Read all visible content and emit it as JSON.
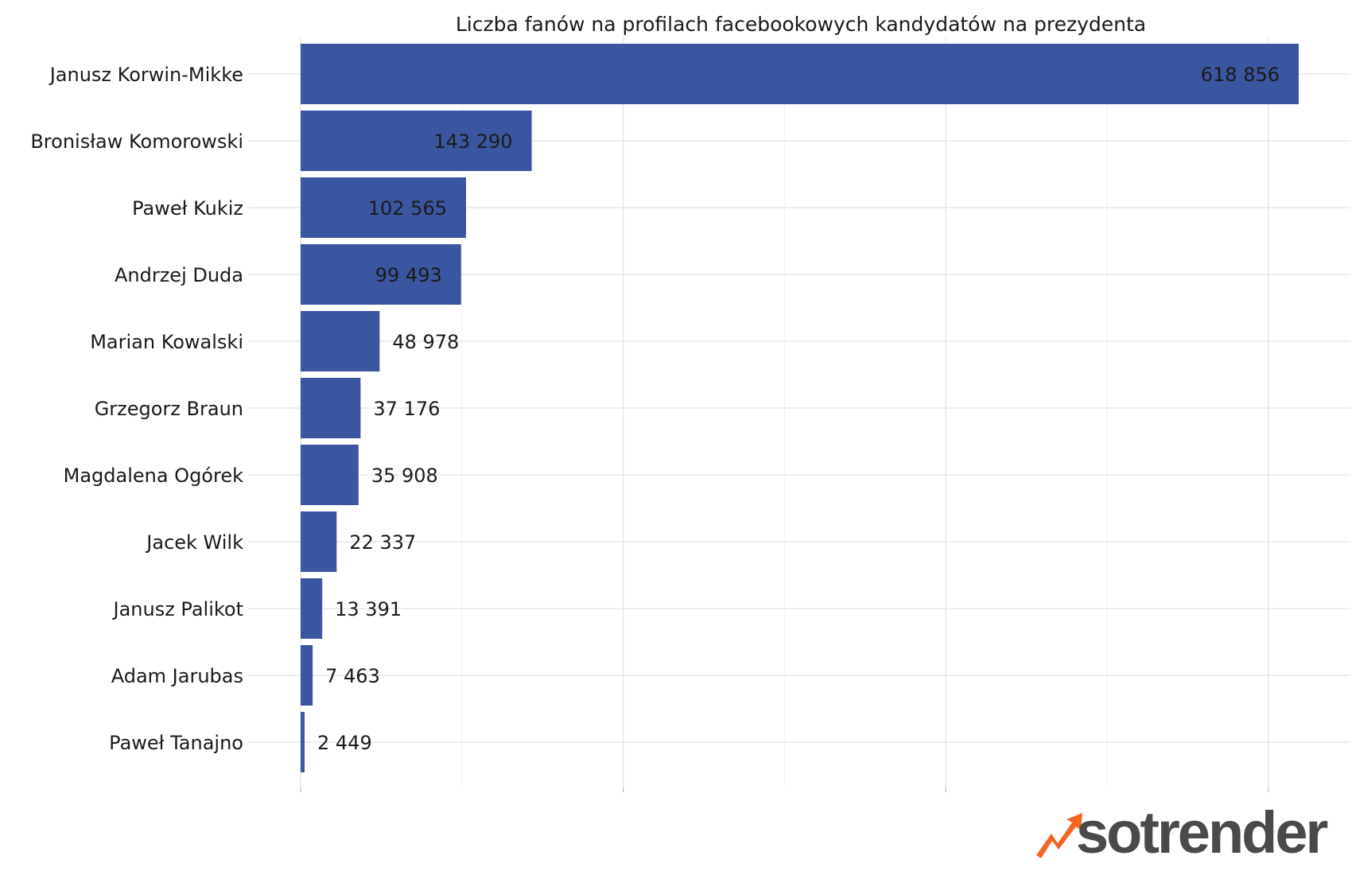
{
  "chart_data": {
    "type": "bar",
    "orientation": "horizontal",
    "title": "Liczba fanów na profilach facebookowych kandydatów na prezydenta",
    "xlabel": "",
    "ylabel": "",
    "xlim": [
      0,
      650000
    ],
    "grid": true,
    "bar_color": "#3b56a0",
    "categories": [
      "Janusz Korwin-Mikke",
      "Bronisław Komorowski",
      "Paweł Kukiz",
      "Andrzej Duda",
      "Marian Kowalski",
      "Grzegorz Braun",
      "Magdalena Ogórek",
      "Jacek Wilk",
      "Janusz Palikot",
      "Adam Jarubas",
      "Paweł Tanajno"
    ],
    "values": [
      618856,
      143290,
      102565,
      99493,
      48978,
      37176,
      35908,
      22337,
      13391,
      7463,
      2449
    ],
    "value_labels": [
      "618 856",
      "143 290",
      "102 565",
      "99 493",
      "48 978",
      "37 176",
      "35 908",
      "22 337",
      "13 391",
      "7 463",
      "2 449"
    ]
  },
  "brand": {
    "logo_text": "sotrender",
    "logo_icon": "trend-arrow-icon",
    "logo_color": "#4a4a4a",
    "icon_color": "#f26522"
  }
}
